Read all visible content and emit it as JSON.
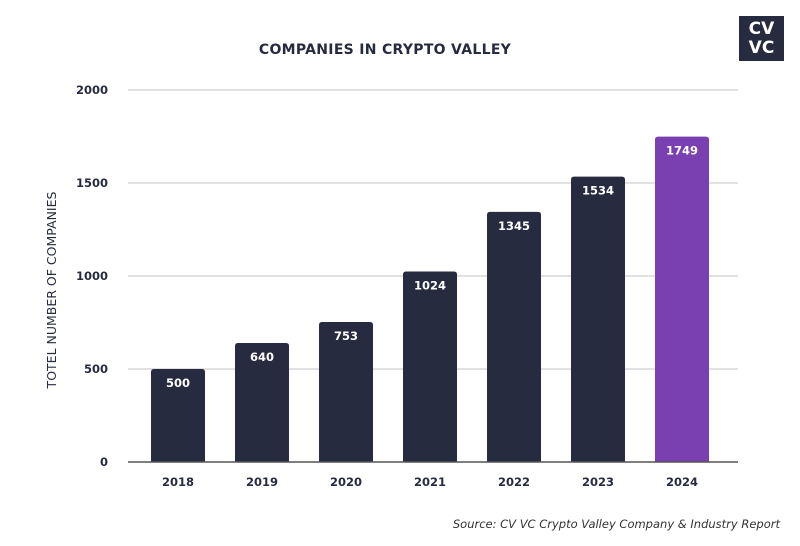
{
  "chart_data": {
    "type": "bar",
    "title": "COMPANIES IN CRYPTO VALLEY",
    "xlabel": "",
    "ylabel": "TOTEL NUMBER OF COMPANIES",
    "categories": [
      "2018",
      "2019",
      "2020",
      "2021",
      "2022",
      "2023",
      "2024"
    ],
    "values": [
      500,
      640,
      753,
      1024,
      1345,
      1534,
      1749
    ],
    "ylim": [
      0,
      2000
    ],
    "yticks": [
      0,
      500,
      1000,
      1500,
      2000
    ],
    "grid": true,
    "colors": {
      "default": "#272b3f",
      "highlight": "#7a3fb0"
    },
    "highlight_index": 6
  },
  "logo": {
    "line1": "CV",
    "line2": "VC"
  },
  "source": "Source: CV VC Crypto Valley Company & Industry Report"
}
